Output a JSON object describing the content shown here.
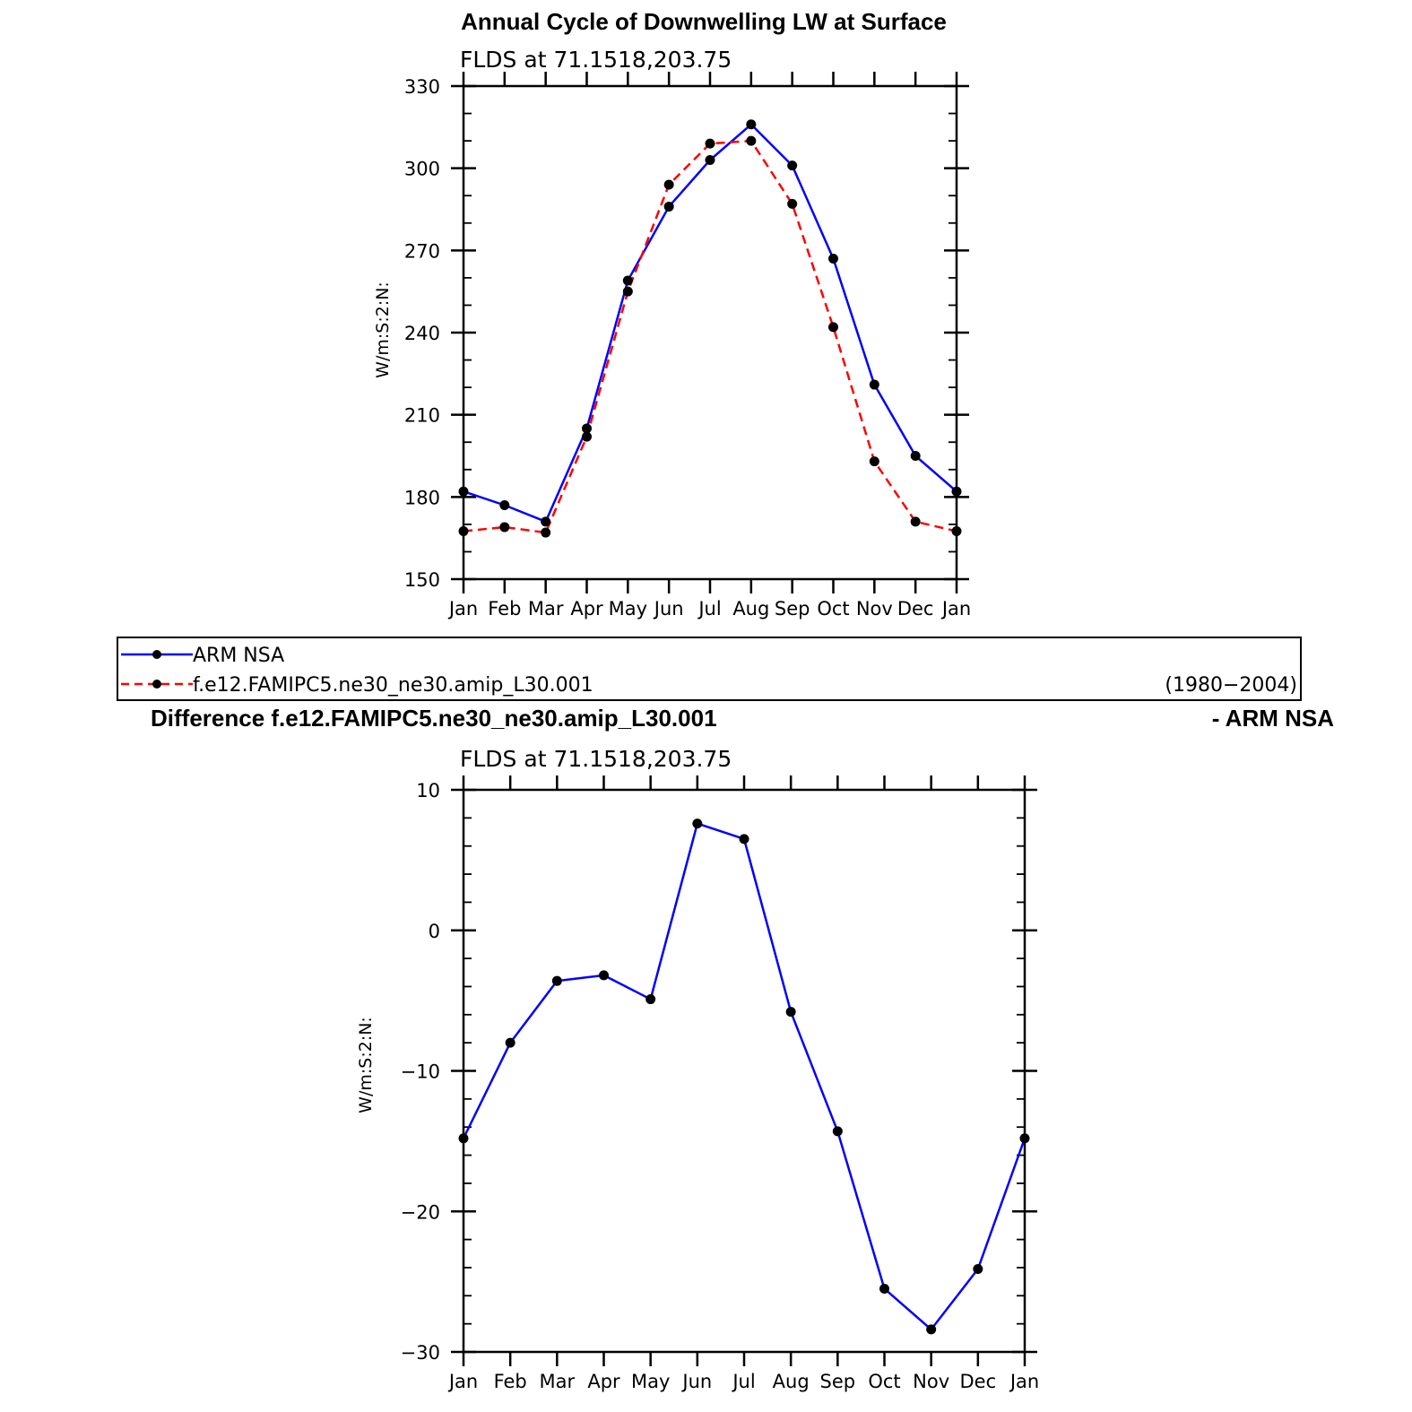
{
  "colors": {
    "obs": "#0000ff",
    "model": "#ff0000",
    "diff": "#0000ff",
    "marker": "#000000"
  },
  "chart_data": [
    {
      "type": "line",
      "title": "Annual Cycle of Downwelling LW at Surface",
      "subtitle": "FLDS at 71.1518,203.75",
      "ylabel": "W/m:S:2:N:",
      "xlabel": "",
      "categories": [
        "Jan",
        "Feb",
        "Mar",
        "Apr",
        "May",
        "Jun",
        "Jul",
        "Aug",
        "Sep",
        "Oct",
        "Nov",
        "Dec",
        "Jan"
      ],
      "ylim": [
        150,
        330
      ],
      "yticks": [
        "150",
        "180",
        "210",
        "240",
        "270",
        "300",
        "330"
      ],
      "series": [
        {
          "name": "ARM NSA",
          "style": "solid",
          "color": "#0000ff",
          "values": [
            182,
            177,
            171,
            205,
            259,
            286,
            303,
            316,
            301,
            267,
            221,
            195,
            182
          ]
        },
        {
          "name": "f.e12.FAMIPC5.ne30_ne30.amip_L30.001",
          "style": "dashed",
          "color": "#ff0000",
          "values": [
            167.5,
            169,
            167,
            202,
            255,
            294,
            309,
            310,
            287,
            242,
            193,
            171,
            167.5
          ]
        }
      ],
      "legend": {
        "placement": "bottom",
        "period": "(1980−2004)"
      }
    },
    {
      "type": "line",
      "title_left": "Difference f.e12.FAMIPC5.ne30_ne30.amip_L30.001",
      "title_right": "- ARM NSA",
      "subtitle": "FLDS at 71.1518,203.75",
      "ylabel": "W/m:S:2:N:",
      "xlabel": "",
      "categories": [
        "Jan",
        "Feb",
        "Mar",
        "Apr",
        "May",
        "Jun",
        "Jul",
        "Aug",
        "Sep",
        "Oct",
        "Nov",
        "Dec",
        "Jan"
      ],
      "ylim": [
        -30,
        10
      ],
      "yticks": [
        "−30",
        "−20",
        "−10",
        "0",
        "10"
      ],
      "series": [
        {
          "style": "solid",
          "color": "#0000ff",
          "values": [
            -14.8,
            -8.0,
            -3.6,
            -3.2,
            -4.9,
            7.6,
            6.5,
            -5.8,
            -14.3,
            -25.5,
            -28.4,
            -24.1,
            -14.8
          ]
        }
      ]
    }
  ]
}
